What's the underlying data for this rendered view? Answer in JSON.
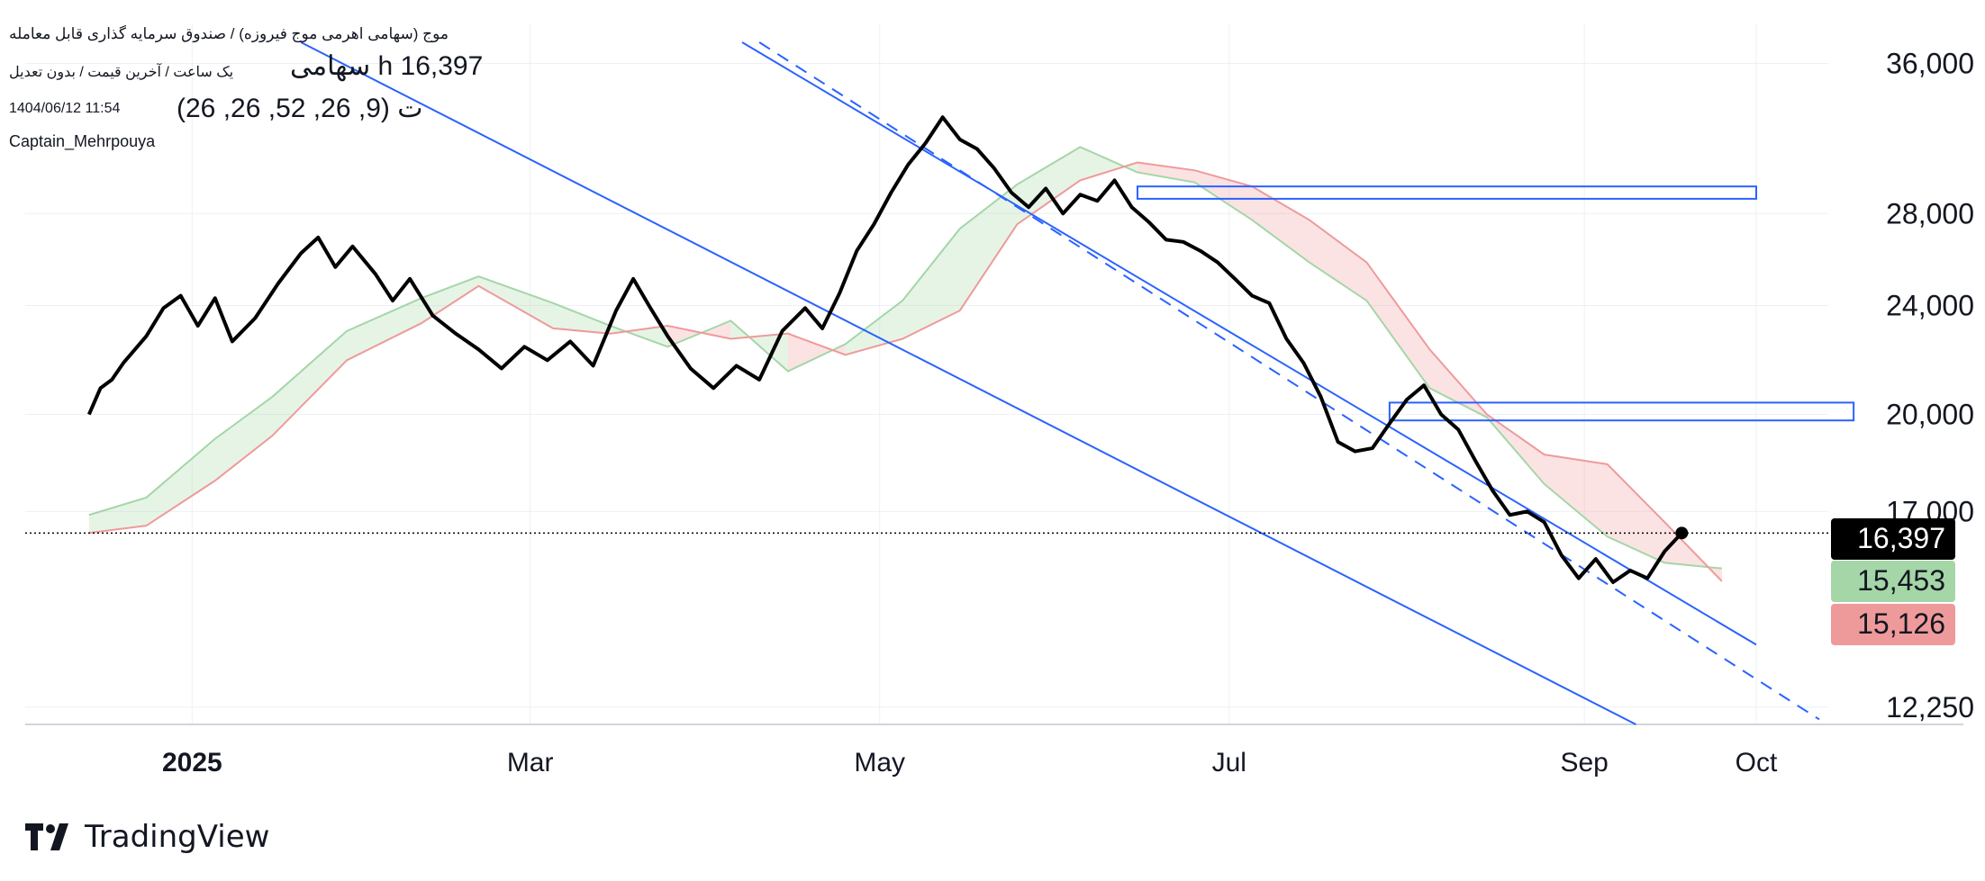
{
  "header": {
    "title": "موج (سهامی اهرمی موج فیروزه) / صندوق سرمایه گذاری قابل معامله",
    "interval_text": "یک ساعت / آخرین قیمت / بدون تعدیل",
    "price_text": "سهامی h 16,397",
    "timestamp": "1404/06/12 11:54",
    "indicator": "ت (9, 26, 52, 26, 26)",
    "author": "Captain_Mehrpouya"
  },
  "brand": {
    "name": "TradingView"
  },
  "colors": {
    "price": "#000000",
    "channel": "#2962ff",
    "cloud_green": "#a5d6a7",
    "cloud_red": "#ef9a9a",
    "grid": "#eef0f3"
  },
  "chart_data": {
    "type": "line",
    "scale": "log",
    "ylim": [
      11900,
      38500
    ],
    "x_labels": [
      "2025",
      "Mar",
      "May",
      "Jul",
      "Sep",
      "Oct"
    ],
    "y_ticks": [
      12250,
      17000,
      20000,
      24000,
      28000,
      36000
    ],
    "y_tick_labels": [
      "12,250",
      "17,000",
      "20,000",
      "24,000",
      "28,000",
      "36,000"
    ],
    "last_price": 16397,
    "price_labels": [
      {
        "value": 16397,
        "text": "16,397",
        "color": "#000000",
        "text_color": "#ffffff"
      },
      {
        "value": 15453,
        "text": "15,453",
        "color": "#a5d6a7",
        "text_color": "#131722"
      },
      {
        "value": 15126,
        "text": "15,126",
        "color": "#ef9a9a",
        "text_color": "#131722"
      }
    ],
    "price_series": [
      [
        "2024-12-14",
        20000
      ],
      [
        "2024-12-16",
        20900
      ],
      [
        "2024-12-18",
        21200
      ],
      [
        "2024-12-20",
        21800
      ],
      [
        "2024-12-24",
        22800
      ],
      [
        "2024-12-27",
        23900
      ],
      [
        "2024-12-30",
        24400
      ],
      [
        "2025-01-02",
        23200
      ],
      [
        "2025-01-05",
        24300
      ],
      [
        "2025-01-08",
        22600
      ],
      [
        "2025-01-12",
        23500
      ],
      [
        "2025-01-16",
        24900
      ],
      [
        "2025-01-20",
        26200
      ],
      [
        "2025-01-23",
        26900
      ],
      [
        "2025-01-26",
        25600
      ],
      [
        "2025-01-29",
        26500
      ],
      [
        "2025-02-02",
        25300
      ],
      [
        "2025-02-05",
        24200
      ],
      [
        "2025-02-08",
        25100
      ],
      [
        "2025-02-12",
        23600
      ],
      [
        "2025-02-16",
        22900
      ],
      [
        "2025-02-20",
        22300
      ],
      [
        "2025-02-24",
        21600
      ],
      [
        "2025-02-28",
        22400
      ],
      [
        "2025-03-04",
        21900
      ],
      [
        "2025-03-08",
        22600
      ],
      [
        "2025-03-12",
        21700
      ],
      [
        "2025-03-16",
        23800
      ],
      [
        "2025-03-19",
        25100
      ],
      [
        "2025-03-22",
        23900
      ],
      [
        "2025-03-25",
        22800
      ],
      [
        "2025-03-29",
        21600
      ],
      [
        "2025-04-02",
        20900
      ],
      [
        "2025-04-06",
        21700
      ],
      [
        "2025-04-10",
        21200
      ],
      [
        "2025-04-14",
        23000
      ],
      [
        "2025-04-18",
        23900
      ],
      [
        "2025-04-21",
        23100
      ],
      [
        "2025-04-24",
        24500
      ],
      [
        "2025-04-27",
        26300
      ],
      [
        "2025-04-30",
        27500
      ],
      [
        "2025-05-03",
        29000
      ],
      [
        "2025-05-06",
        30400
      ],
      [
        "2025-05-09",
        31500
      ],
      [
        "2025-05-12",
        32900
      ],
      [
        "2025-05-15",
        31700
      ],
      [
        "2025-05-18",
        31200
      ],
      [
        "2025-05-21",
        30200
      ],
      [
        "2025-05-24",
        29000
      ],
      [
        "2025-05-27",
        28300
      ],
      [
        "2025-05-30",
        29200
      ],
      [
        "2025-06-02",
        28000
      ],
      [
        "2025-06-05",
        28900
      ],
      [
        "2025-06-08",
        28600
      ],
      [
        "2025-06-11",
        29600
      ],
      [
        "2025-06-14",
        28300
      ],
      [
        "2025-06-17",
        27600
      ],
      [
        "2025-06-20",
        26800
      ],
      [
        "2025-06-23",
        26700
      ],
      [
        "2025-06-26",
        26300
      ],
      [
        "2025-06-29",
        25800
      ],
      [
        "2025-07-02",
        25100
      ],
      [
        "2025-07-05",
        24400
      ],
      [
        "2025-07-08",
        24100
      ],
      [
        "2025-07-11",
        22700
      ],
      [
        "2025-07-14",
        21800
      ],
      [
        "2025-07-17",
        20600
      ],
      [
        "2025-07-20",
        19100
      ],
      [
        "2025-07-23",
        18800
      ],
      [
        "2025-07-26",
        18900
      ],
      [
        "2025-07-29",
        19700
      ],
      [
        "2025-08-01",
        20500
      ],
      [
        "2025-08-04",
        21000
      ],
      [
        "2025-08-07",
        20000
      ],
      [
        "2025-08-10",
        19500
      ],
      [
        "2025-08-13",
        18500
      ],
      [
        "2025-08-16",
        17600
      ],
      [
        "2025-08-19",
        16900
      ],
      [
        "2025-08-22",
        17000
      ],
      [
        "2025-08-25",
        16700
      ],
      [
        "2025-08-28",
        15800
      ],
      [
        "2025-08-31",
        15200
      ],
      [
        "2025-09-03",
        15700
      ],
      [
        "2025-09-06",
        15100
      ],
      [
        "2025-09-09",
        15400
      ],
      [
        "2025-09-12",
        15200
      ],
      [
        "2025-09-15",
        15900
      ],
      [
        "2025-09-18",
        16397
      ]
    ],
    "cloud_span_a": [
      [
        "2024-12-14",
        16900
      ],
      [
        "2024-12-24",
        17400
      ],
      [
        "2025-01-05",
        19200
      ],
      [
        "2025-01-15",
        20600
      ],
      [
        "2025-01-28",
        23000
      ],
      [
        "2025-02-10",
        24300
      ],
      [
        "2025-02-20",
        25200
      ],
      [
        "2025-03-05",
        24100
      ],
      [
        "2025-03-15",
        23200
      ],
      [
        "2025-03-25",
        22400
      ],
      [
        "2025-04-05",
        23400
      ],
      [
        "2025-04-15",
        21500
      ],
      [
        "2025-04-25",
        22500
      ],
      [
        "2025-05-05",
        24200
      ],
      [
        "2025-05-15",
        27300
      ],
      [
        "2025-05-25",
        29400
      ],
      [
        "2025-06-05",
        31300
      ],
      [
        "2025-06-15",
        30000
      ],
      [
        "2025-06-25",
        29500
      ],
      [
        "2025-07-05",
        27700
      ],
      [
        "2025-07-15",
        25800
      ],
      [
        "2025-07-25",
        24200
      ],
      [
        "2025-08-05",
        20900
      ],
      [
        "2025-08-15",
        19900
      ],
      [
        "2025-08-25",
        17800
      ],
      [
        "2025-09-05",
        16300
      ],
      [
        "2025-09-15",
        15600
      ],
      [
        "2025-09-25",
        15453
      ]
    ],
    "cloud_span_b": [
      [
        "2024-12-14",
        16400
      ],
      [
        "2024-12-24",
        16600
      ],
      [
        "2025-01-05",
        17900
      ],
      [
        "2025-01-15",
        19300
      ],
      [
        "2025-01-28",
        21900
      ],
      [
        "2025-02-10",
        23300
      ],
      [
        "2025-02-20",
        24800
      ],
      [
        "2025-03-05",
        23100
      ],
      [
        "2025-03-15",
        22900
      ],
      [
        "2025-03-25",
        23200
      ],
      [
        "2025-04-05",
        22700
      ],
      [
        "2025-04-15",
        22900
      ],
      [
        "2025-04-25",
        22100
      ],
      [
        "2025-05-05",
        22700
      ],
      [
        "2025-05-15",
        23800
      ],
      [
        "2025-05-25",
        27500
      ],
      [
        "2025-06-05",
        29600
      ],
      [
        "2025-06-15",
        30500
      ],
      [
        "2025-06-25",
        30100
      ],
      [
        "2025-07-05",
        29300
      ],
      [
        "2025-07-15",
        27700
      ],
      [
        "2025-07-25",
        25800
      ],
      [
        "2025-08-05",
        22300
      ],
      [
        "2025-08-15",
        20000
      ],
      [
        "2025-08-25",
        18700
      ],
      [
        "2025-09-05",
        18400
      ],
      [
        "2025-09-15",
        16700
      ],
      [
        "2025-09-25",
        15126
      ]
    ],
    "channel_lines": [
      {
        "style": "solid",
        "from": [
          "2025-04-07",
          37300
        ],
        "to": [
          "2025-10-01",
          13600
        ]
      },
      {
        "style": "dashed",
        "from": [
          "2025-04-10",
          37300
        ],
        "to": [
          "2025-10-12",
          12000
        ]
      },
      {
        "style": "solid",
        "from": [
          "2025-01-20",
          37300
        ],
        "to": [
          "2025-09-10",
          11900
        ]
      }
    ],
    "zones": [
      {
        "from": [
          "2025-06-15",
          29300
        ],
        "to": [
          "2025-10-01",
          28700
        ]
      },
      {
        "from": [
          "2025-07-29",
          20400
        ],
        "to": [
          "2025-10-18",
          19800
        ]
      }
    ],
    "grid": true
  }
}
